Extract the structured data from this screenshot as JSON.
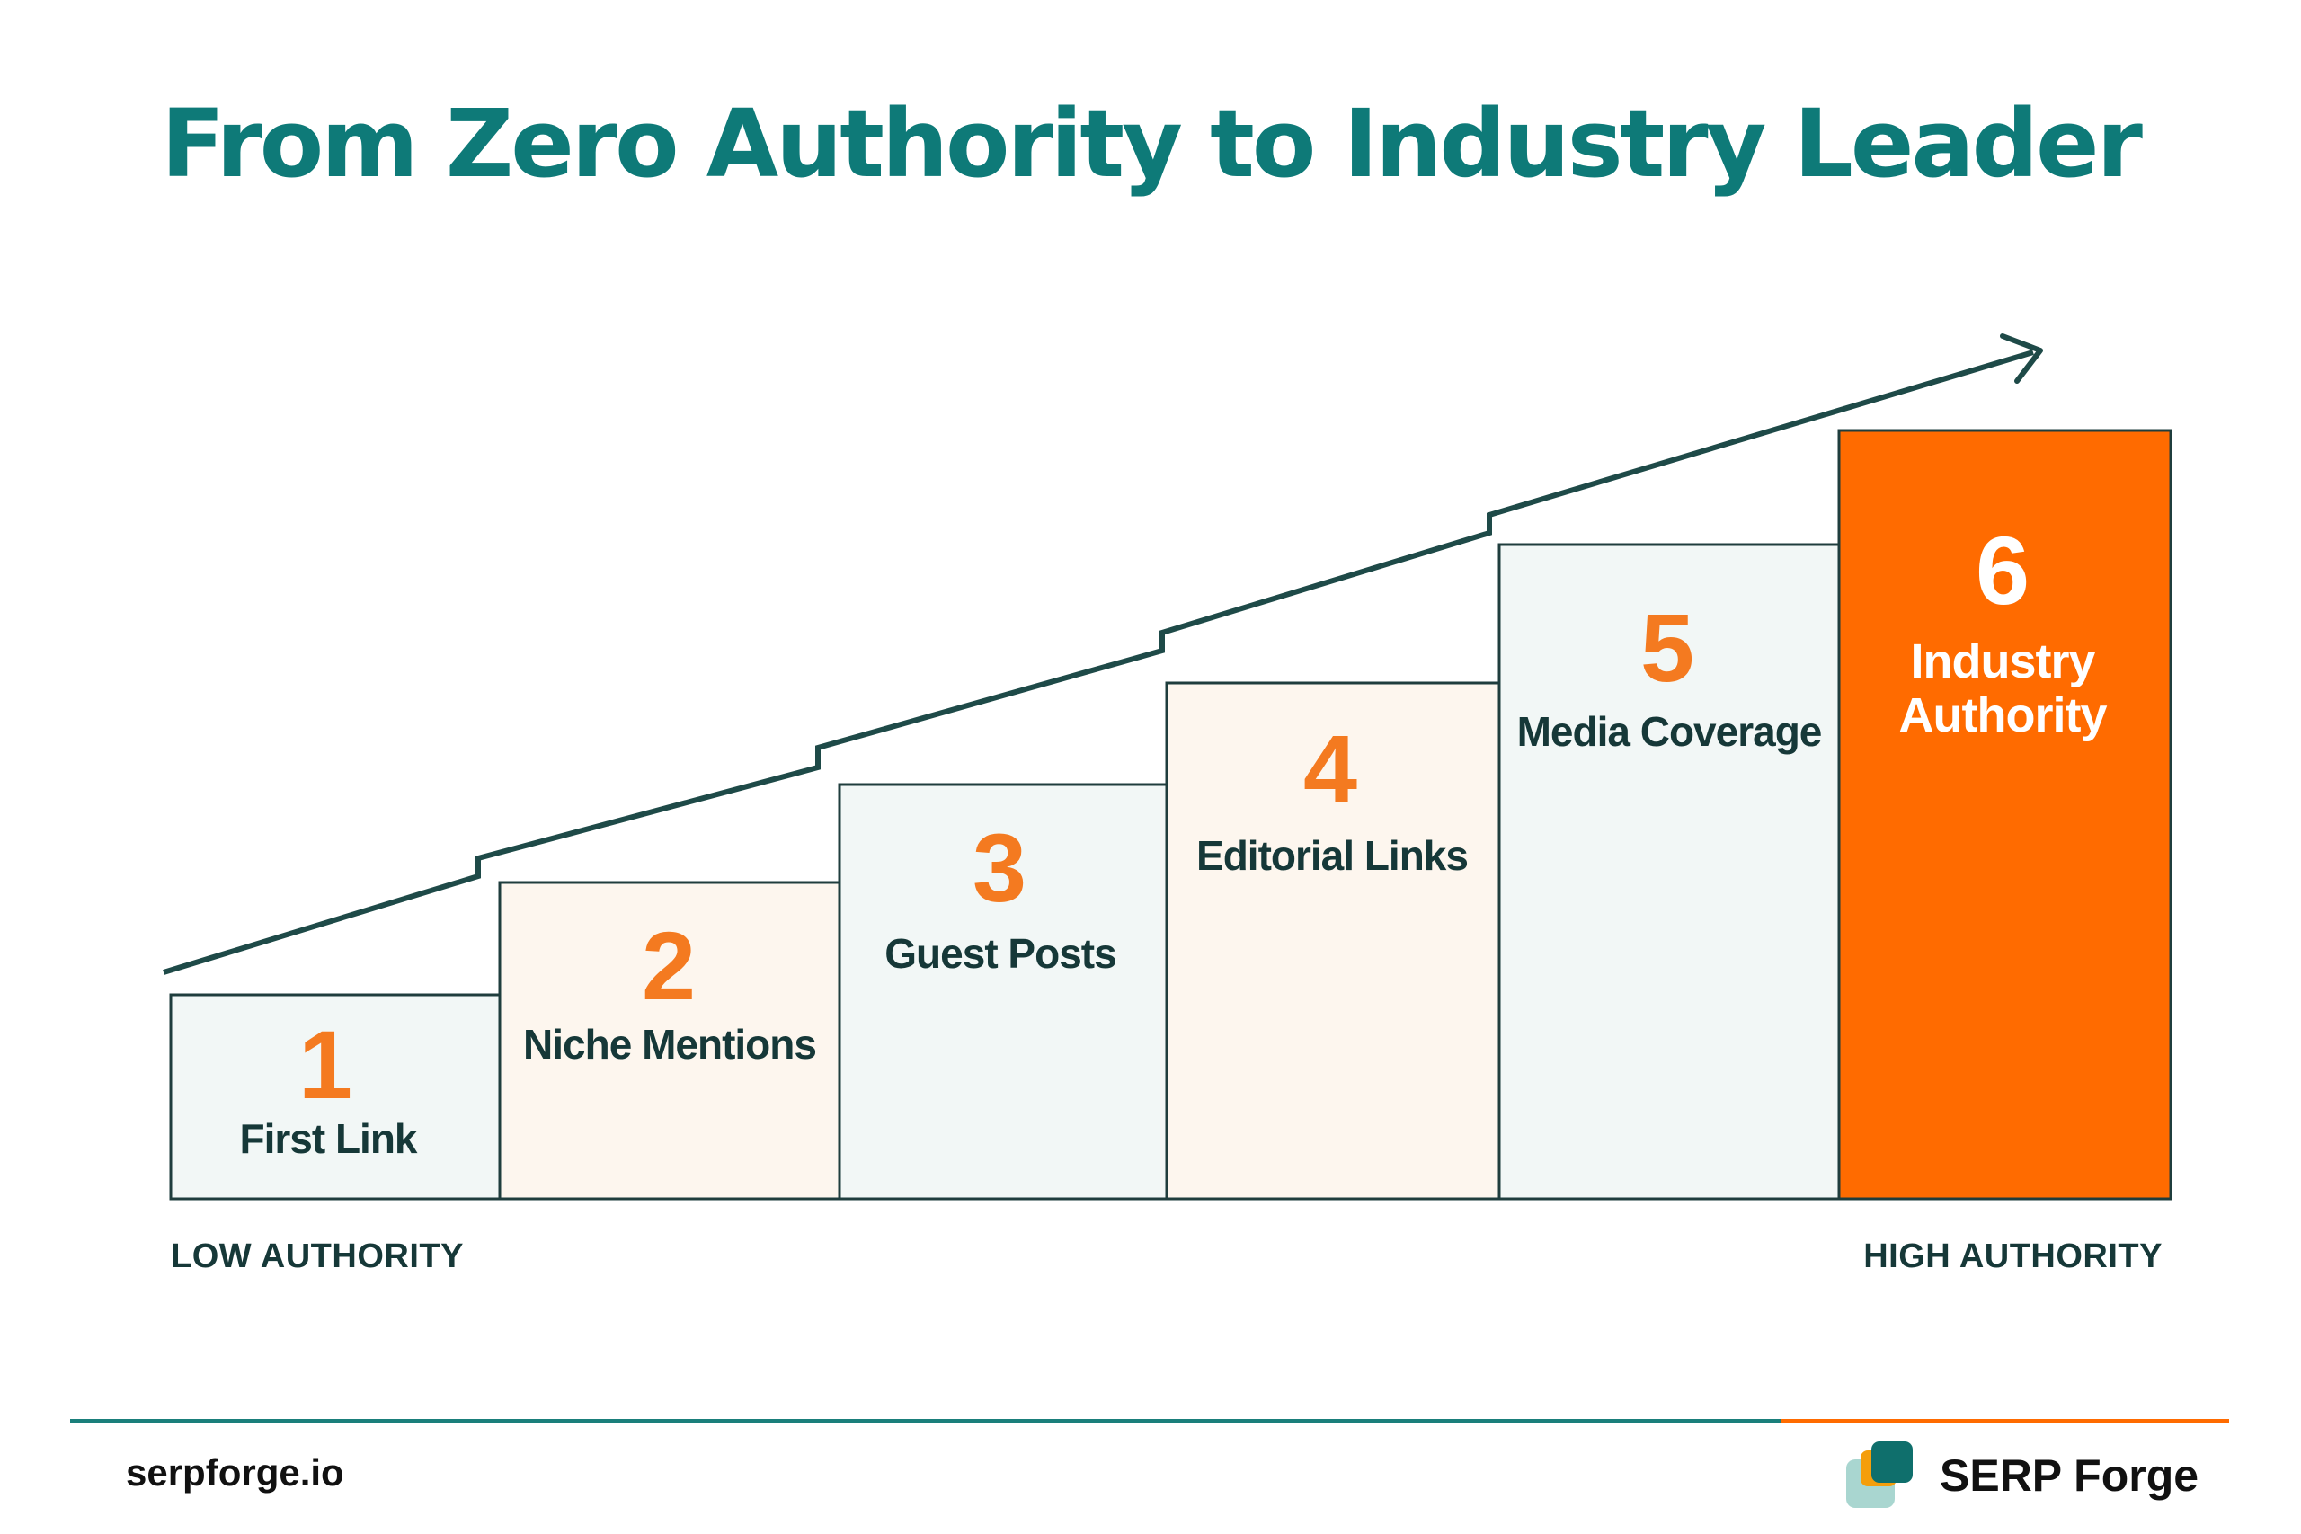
{
  "title": "From Zero Authority to Industry Leader",
  "steps": [
    {
      "number": "1",
      "label": "First Link"
    },
    {
      "number": "2",
      "label": "Niche Mentions"
    },
    {
      "number": "3",
      "label": "Guest Posts"
    },
    {
      "number": "4",
      "label": "Editorial Links"
    },
    {
      "number": "5",
      "label": "Media Coverage"
    },
    {
      "number": "6",
      "label_lines": [
        "Industry",
        "Authority"
      ]
    }
  ],
  "scale": {
    "low": "LOW AUTHORITY",
    "high": "HIGH AUTHORITY"
  },
  "footer": {
    "site": "serpforge.io",
    "brand": "SERP Forge"
  },
  "colors": {
    "title": "#0e7a78",
    "accent_orange": "#ff6b00",
    "number_orange": "#f47a20",
    "box_light_blue": "#f2f7f6",
    "box_light_cream": "#fdf6ee",
    "outline": "#1f3d3d",
    "text_dark": "#163838",
    "arrow": "#1e4a48",
    "footer_teal": "#1a7f7b",
    "logo_back": "#a9d6d0",
    "logo_mid": "#f59e0b",
    "logo_front": "#0f6f6c"
  }
}
